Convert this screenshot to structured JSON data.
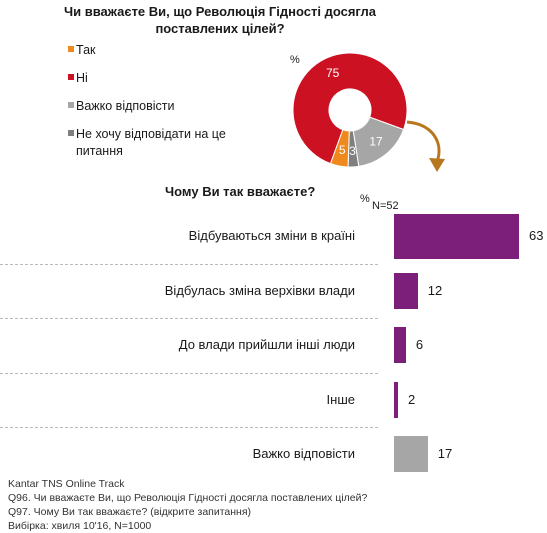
{
  "title": "Чи вважаєте Ви, що Революція Гідності досягла поставлених цілей?",
  "title_line1": "Чи вважаєте Ви, що Революція Гідності досягла",
  "title_line2": "поставлених цілей?",
  "pie_unit": "%",
  "bar_unit": "%",
  "bar_title": "Чому Ви так вважаєте?",
  "bar_n": "N=52",
  "colors": {
    "yes": "#f0891d",
    "no": "#cc1122",
    "hard": "#a6a6a6",
    "refuse": "#7f7f7f",
    "bar": "#7b1f7b",
    "bar_gray": "#a6a6a6",
    "arrow": "#b8761e"
  },
  "chart_data": [
    {
      "type": "pie",
      "variant": "donut",
      "title": "Чи вважаєте Ви, що Революція Гідності досягла поставлених цілей?",
      "unit": "%",
      "categories": [
        "Так",
        "Ні",
        "Важко відповісти",
        "Не хочу відповідати на це питання"
      ],
      "values": [
        5,
        75,
        17,
        3
      ],
      "colors": [
        "#f0891d",
        "#cc1122",
        "#a6a6a6",
        "#7f7f7f"
      ],
      "legend_position": "left"
    },
    {
      "type": "bar",
      "orientation": "horizontal",
      "title": "Чому Ви так вважаєте?",
      "unit": "%",
      "n_label": "N=52",
      "categories": [
        "Відбуваються зміни в країні",
        "Відбулась зміна верхівки влади",
        "До влади прийшли  інші люди",
        "Інше",
        "Важко відповісти"
      ],
      "values": [
        63,
        12,
        6,
        2,
        17
      ],
      "colors": [
        "#7b1f7b",
        "#7b1f7b",
        "#7b1f7b",
        "#7b1f7b",
        "#a6a6a6"
      ],
      "xlim": [
        0,
        63
      ]
    }
  ],
  "legend": [
    {
      "label": "Так"
    },
    {
      "label": "Ні"
    },
    {
      "label": "Важко відповісти"
    },
    {
      "label_line1": "Не хочу відповідати на це",
      "label_line2": "питання"
    }
  ],
  "footnotes": [
    "Kantar TNS Online Track",
    "Q96. Чи вважаєте Ви, що Революція Гідності досягла поставлених цілей?",
    "Q97. Чому Ви так вважаєте? (відкрите запитання)",
    "Вибірка: хвиля 10'16, N=1000"
  ]
}
